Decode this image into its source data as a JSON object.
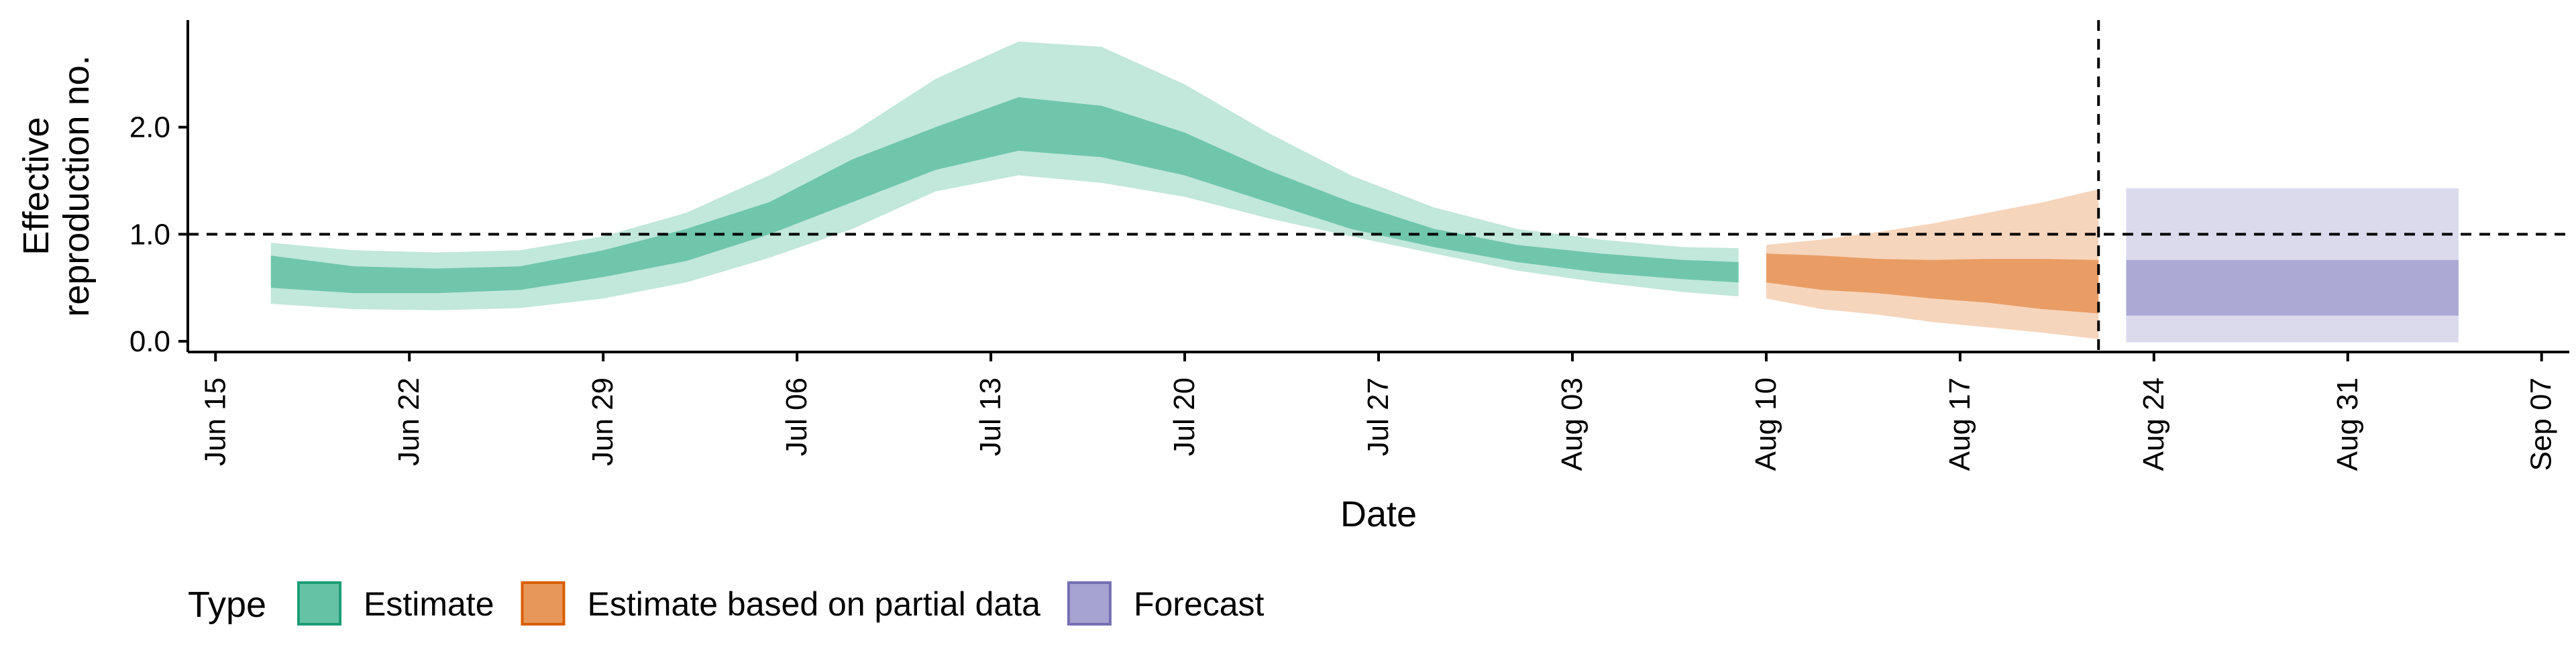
{
  "chart_data": {
    "type": "area",
    "title": "",
    "xlabel": "Date",
    "ylabel_lines": [
      "Effective",
      "reproduction no."
    ],
    "x_range": [
      "2020-06-14",
      "2020-09-08"
    ],
    "ylim": [
      -0.1,
      3.0
    ],
    "y_ticks": [
      0.0,
      1.0,
      2.0
    ],
    "y_tick_labels": [
      "0.0",
      "1.0",
      "2.0"
    ],
    "x_ticks": [
      "2020-06-15",
      "2020-06-22",
      "2020-06-29",
      "2020-07-06",
      "2020-07-13",
      "2020-07-20",
      "2020-07-27",
      "2020-08-03",
      "2020-08-10",
      "2020-08-17",
      "2020-08-24",
      "2020-08-31",
      "2020-09-07"
    ],
    "x_tick_labels": [
      "Jun 15",
      "Jun 22",
      "Jun 29",
      "Jul 06",
      "Jul 13",
      "Jul 20",
      "Jul 27",
      "Aug 03",
      "Aug 10",
      "Aug 17",
      "Aug 24",
      "Aug 31",
      "Sep 07"
    ],
    "reference_hline_y": 1.0,
    "reference_vline_x": "2020-08-22",
    "grid": false,
    "legend": {
      "position": "bottom-left",
      "title": "Type",
      "items": [
        {
          "label": "Estimate",
          "fill": "#66c2a5",
          "border": "#1b9e77"
        },
        {
          "label": "Estimate based on partial data",
          "fill": "#e8975a",
          "border": "#d95f02"
        },
        {
          "label": "Forecast",
          "fill": "#a6a3d1",
          "border": "#7570b3"
        }
      ]
    },
    "series": [
      {
        "name": "Estimate",
        "color": "#66c2a5",
        "dates": [
          "2020-06-17",
          "2020-06-20",
          "2020-06-23",
          "2020-06-26",
          "2020-06-29",
          "2020-07-02",
          "2020-07-05",
          "2020-07-08",
          "2020-07-11",
          "2020-07-14",
          "2020-07-17",
          "2020-07-20",
          "2020-07-23",
          "2020-07-26",
          "2020-07-29",
          "2020-08-01",
          "2020-08-04",
          "2020-08-07",
          "2020-08-09"
        ],
        "lower_90": [
          0.35,
          0.3,
          0.29,
          0.31,
          0.4,
          0.55,
          0.78,
          1.05,
          1.4,
          1.55,
          1.48,
          1.35,
          1.15,
          0.98,
          0.82,
          0.66,
          0.55,
          0.46,
          0.42
        ],
        "lower_50": [
          0.5,
          0.45,
          0.45,
          0.48,
          0.6,
          0.75,
          1.0,
          1.3,
          1.6,
          1.78,
          1.72,
          1.55,
          1.3,
          1.05,
          0.88,
          0.74,
          0.64,
          0.58,
          0.55
        ],
        "upper_50": [
          0.8,
          0.7,
          0.68,
          0.7,
          0.85,
          1.05,
          1.3,
          1.7,
          2.0,
          2.28,
          2.2,
          1.95,
          1.6,
          1.3,
          1.05,
          0.9,
          0.82,
          0.76,
          0.74
        ],
        "upper_90": [
          0.92,
          0.85,
          0.83,
          0.85,
          0.98,
          1.2,
          1.55,
          1.95,
          2.45,
          2.8,
          2.75,
          2.4,
          1.95,
          1.55,
          1.25,
          1.05,
          0.95,
          0.88,
          0.87
        ]
      },
      {
        "name": "Estimate based on partial data",
        "color": "#e8975a",
        "dates": [
          "2020-08-10",
          "2020-08-12",
          "2020-08-14",
          "2020-08-16",
          "2020-08-18",
          "2020-08-20",
          "2020-08-22"
        ],
        "lower_90": [
          0.4,
          0.3,
          0.25,
          0.18,
          0.13,
          0.08,
          0.02
        ],
        "lower_50": [
          0.55,
          0.48,
          0.45,
          0.4,
          0.36,
          0.3,
          0.26
        ],
        "upper_50": [
          0.82,
          0.8,
          0.77,
          0.76,
          0.77,
          0.77,
          0.76
        ],
        "upper_90": [
          0.9,
          0.95,
          1.02,
          1.1,
          1.2,
          1.3,
          1.42
        ]
      },
      {
        "name": "Forecast",
        "color": "#a6a3d1",
        "dates": [
          "2020-08-23",
          "2020-09-04"
        ],
        "lower_90": [
          -0.01,
          -0.01
        ],
        "lower_50": [
          0.24,
          0.24
        ],
        "upper_50": [
          0.76,
          0.76
        ],
        "upper_90": [
          1.43,
          1.43
        ]
      }
    ]
  }
}
